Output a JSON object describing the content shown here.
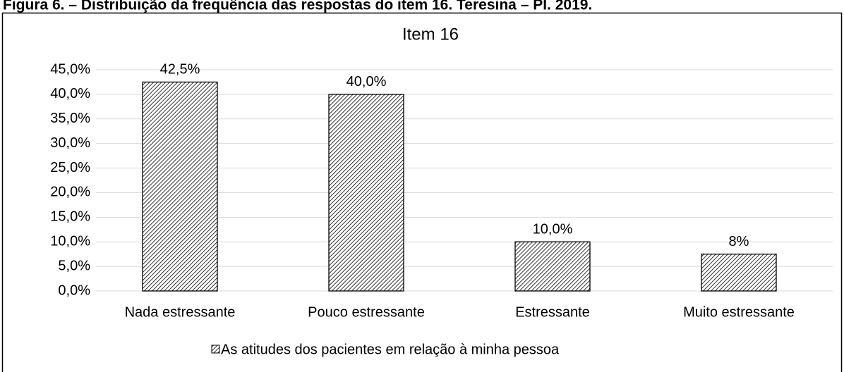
{
  "caption": "Figura 6. – Distribuição da frequência das respostas do item 16. Teresina – PI. 2019.",
  "chart_data": {
    "type": "bar",
    "title": "Item 16",
    "categories": [
      "Nada estressante",
      "Pouco estressante",
      "Estressante",
      "Muito estressante"
    ],
    "series": [
      {
        "name": "As atitudes dos pacientes em relação à minha pessoa",
        "color": "#000000",
        "values": [
          42.5,
          40.0,
          10.0,
          7.5
        ],
        "value_labels": [
          "42,5%",
          "40,0%",
          "10,0%",
          "8%"
        ]
      }
    ],
    "ylim": [
      0,
      45
    ],
    "yticks": [
      {
        "value": 0,
        "label": "0,0%"
      },
      {
        "value": 5,
        "label": "5,0%"
      },
      {
        "value": 10,
        "label": "10,0%"
      },
      {
        "value": 15,
        "label": "15,0%"
      },
      {
        "value": 20,
        "label": "20,0%"
      },
      {
        "value": 25,
        "label": "25,0%"
      },
      {
        "value": 30,
        "label": "30,0%"
      },
      {
        "value": 35,
        "label": "35,0%"
      },
      {
        "value": 40,
        "label": "40,0%"
      },
      {
        "value": 45,
        "label": "45,0%"
      }
    ],
    "grid": true,
    "legend": "bottom"
  }
}
